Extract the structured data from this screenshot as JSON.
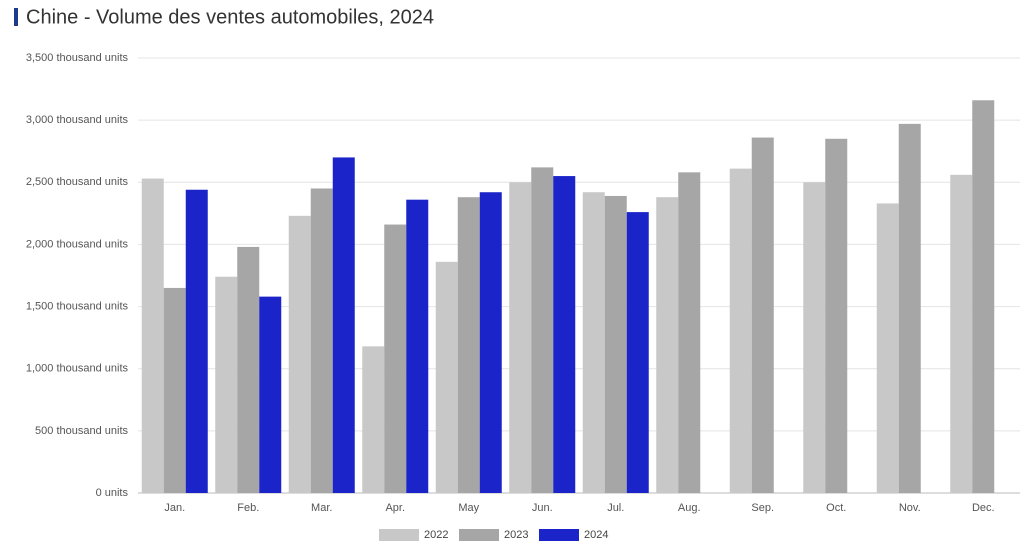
{
  "chart_data": {
    "type": "bar",
    "title": "Chine - Volume des ventes automobiles, 2024",
    "categories": [
      "Jan.",
      "Feb.",
      "Mar.",
      "Apr.",
      "May",
      "Jun.",
      "Jul.",
      "Aug.",
      "Sep.",
      "Oct.",
      "Nov.",
      "Dec."
    ],
    "series": [
      {
        "name": "2022",
        "color": "#c8c8c8",
        "values": [
          2530,
          1740,
          2230,
          1180,
          1860,
          2500,
          2420,
          2380,
          2610,
          2500,
          2330,
          2560
        ]
      },
      {
        "name": "2023",
        "color": "#a6a6a6",
        "values": [
          1650,
          1980,
          2450,
          2160,
          2380,
          2620,
          2390,
          2580,
          2860,
          2850,
          2970,
          3160
        ]
      },
      {
        "name": "2024",
        "color": "#1a24c8",
        "values": [
          2440,
          1580,
          2700,
          2360,
          2420,
          2550,
          2260,
          null,
          null,
          null,
          null,
          null
        ]
      }
    ],
    "ylim": [
      0,
      3500
    ],
    "yticks": [
      {
        "value": 0,
        "label": "0 units"
      },
      {
        "value": 500,
        "label": "500 thousand units"
      },
      {
        "value": 1000,
        "label": "1,000 thousand units"
      },
      {
        "value": 1500,
        "label": "1,500 thousand units"
      },
      {
        "value": 2000,
        "label": "2,000 thousand units"
      },
      {
        "value": 2500,
        "label": "2,500 thousand units"
      },
      {
        "value": 3000,
        "label": "3,000 thousand units"
      },
      {
        "value": 3500,
        "label": "3,500 thousand units"
      }
    ],
    "grid": true,
    "legend": "bottom"
  }
}
